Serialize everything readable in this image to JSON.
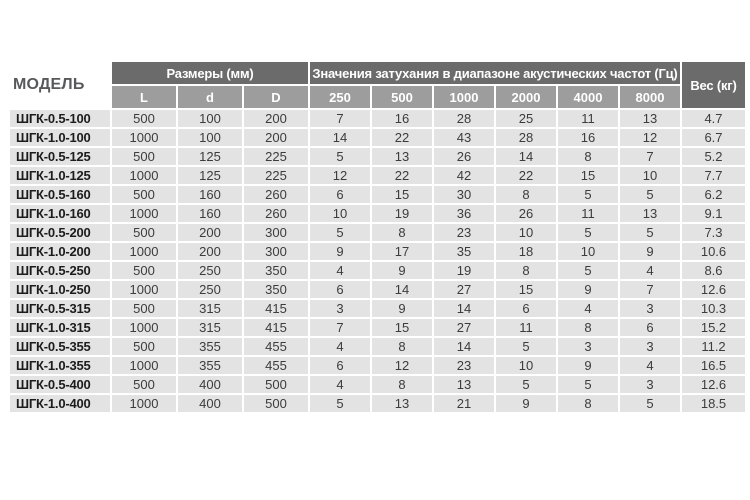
{
  "page": {
    "background": "#ffffff"
  },
  "table": {
    "model_header": "МОДЕЛЬ",
    "dimensions_header": "Размеры (мм)",
    "dimension_cols": [
      "L",
      "d",
      "D"
    ],
    "attenuation_header": "Значения затухания в диапазоне акустических частот (Гц)",
    "frequency_cols": [
      "250",
      "500",
      "1000",
      "2000",
      "4000",
      "8000"
    ],
    "weight_header": "Вес (кг)",
    "colors": {
      "group_header_bg": "#6b6b6b",
      "sub_header_bg": "#9d9d9d",
      "row_bg": "#e3e3e3",
      "header_text": "#ffffff",
      "model_header_text": "#58595b",
      "model_text": "#1c1c1c",
      "value_text": "#3c3c3c"
    },
    "rows": [
      {
        "model": "ШГК-0.5-100",
        "dims": [
          "500",
          "100",
          "200"
        ],
        "attenuation": [
          "7",
          "16",
          "28",
          "25",
          "11",
          "13"
        ],
        "weight": "4.7"
      },
      {
        "model": "ШГК-1.0-100",
        "dims": [
          "1000",
          "100",
          "200"
        ],
        "attenuation": [
          "14",
          "22",
          "43",
          "28",
          "16",
          "12"
        ],
        "weight": "6.7"
      },
      {
        "model": "ШГК-0.5-125",
        "dims": [
          "500",
          "125",
          "225"
        ],
        "attenuation": [
          "5",
          "13",
          "26",
          "14",
          "8",
          "7"
        ],
        "weight": "5.2"
      },
      {
        "model": "ШГК-1.0-125",
        "dims": [
          "1000",
          "125",
          "225"
        ],
        "attenuation": [
          "12",
          "22",
          "42",
          "22",
          "15",
          "10"
        ],
        "weight": "7.7"
      },
      {
        "model": "ШГК-0.5-160",
        "dims": [
          "500",
          "160",
          "260"
        ],
        "attenuation": [
          "6",
          "15",
          "30",
          "8",
          "5",
          "5"
        ],
        "weight": "6.2"
      },
      {
        "model": "ШГК-1.0-160",
        "dims": [
          "1000",
          "160",
          "260"
        ],
        "attenuation": [
          "10",
          "19",
          "36",
          "26",
          "11",
          "13"
        ],
        "weight": "9.1"
      },
      {
        "model": "ШГК-0.5-200",
        "dims": [
          "500",
          "200",
          "300"
        ],
        "attenuation": [
          "5",
          "8",
          "23",
          "10",
          "5",
          "5"
        ],
        "weight": "7.3"
      },
      {
        "model": "ШГК-1.0-200",
        "dims": [
          "1000",
          "200",
          "300"
        ],
        "attenuation": [
          "9",
          "17",
          "35",
          "18",
          "10",
          "9"
        ],
        "weight": "10.6"
      },
      {
        "model": "ШГК-0.5-250",
        "dims": [
          "500",
          "250",
          "350"
        ],
        "attenuation": [
          "4",
          "9",
          "19",
          "8",
          "5",
          "4"
        ],
        "weight": "8.6"
      },
      {
        "model": "ШГК-1.0-250",
        "dims": [
          "1000",
          "250",
          "350"
        ],
        "attenuation": [
          "6",
          "14",
          "27",
          "15",
          "9",
          "7"
        ],
        "weight": "12.6"
      },
      {
        "model": "ШГК-0.5-315",
        "dims": [
          "500",
          "315",
          "415"
        ],
        "attenuation": [
          "3",
          "9",
          "14",
          "6",
          "4",
          "3"
        ],
        "weight": "10.3"
      },
      {
        "model": "ШГК-1.0-315",
        "dims": [
          "1000",
          "315",
          "415"
        ],
        "attenuation": [
          "7",
          "15",
          "27",
          "11",
          "8",
          "6"
        ],
        "weight": "15.2"
      },
      {
        "model": "ШГК-0.5-355",
        "dims": [
          "500",
          "355",
          "455"
        ],
        "attenuation": [
          "4",
          "8",
          "14",
          "5",
          "3",
          "3"
        ],
        "weight": "11.2"
      },
      {
        "model": "ШГК-1.0-355",
        "dims": [
          "1000",
          "355",
          "455"
        ],
        "attenuation": [
          "6",
          "12",
          "23",
          "10",
          "9",
          "4"
        ],
        "weight": "16.5"
      },
      {
        "model": "ШГК-0.5-400",
        "dims": [
          "500",
          "400",
          "500"
        ],
        "attenuation": [
          "4",
          "8",
          "13",
          "5",
          "5",
          "3"
        ],
        "weight": "12.6"
      },
      {
        "model": "ШГК-1.0-400",
        "dims": [
          "1000",
          "400",
          "500"
        ],
        "attenuation": [
          "5",
          "13",
          "21",
          "9",
          "8",
          "5"
        ],
        "weight": "18.5"
      }
    ]
  }
}
